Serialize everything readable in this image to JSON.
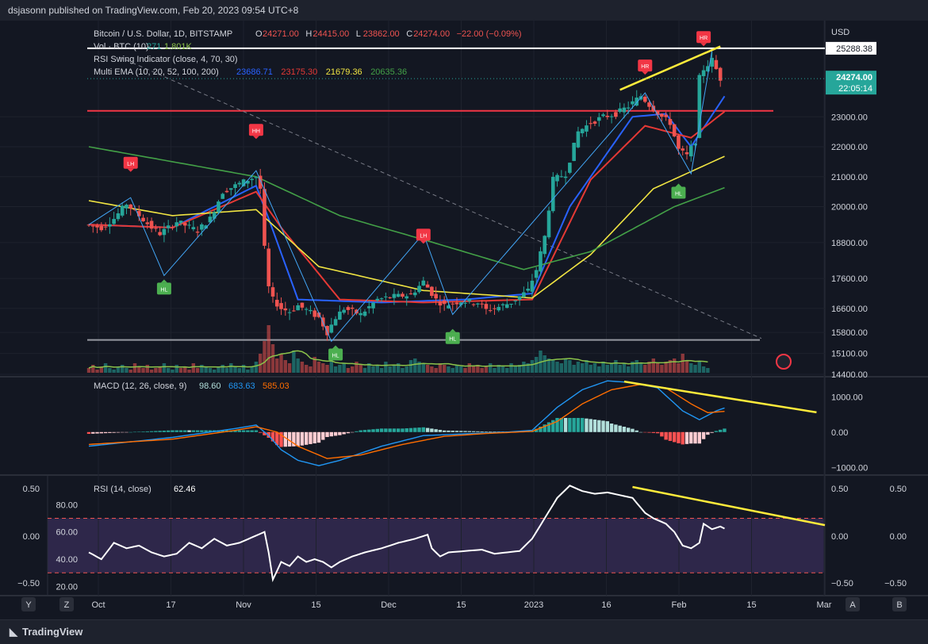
{
  "header": {
    "published": "dsjasonn published on TradingView.com, Feb 20, 2023 09:54 UTC+8"
  },
  "footer": {
    "brand": "TradingView"
  },
  "legend": {
    "symbol": "Bitcoin / U.S. Dollar, 1D, BITSTAMP",
    "ohlc": [
      {
        "k": "O",
        "v": "24271.00"
      },
      {
        "k": "H",
        "v": "24415.00"
      },
      {
        "k": "L",
        "v": "23862.00"
      },
      {
        "k": "C",
        "v": "24274.00"
      }
    ],
    "change": "−22.00 (−0.09%)",
    "vol_label": "Vol · BTC (10)",
    "vol_values": [
      "271",
      "1.801K"
    ],
    "rsi_swing": "RSI Swing Indicator (close, 4, 70, 30)",
    "ema_label": "Multi EMA (10, 20, 52, 100, 200)",
    "ema_values": [
      "23686.71",
      "23175.30",
      "21679.36",
      "20635.36"
    ],
    "macd_label": "MACD (12, 26, close, 9)",
    "macd_values": [
      "98.60",
      "683.63",
      "585.03"
    ],
    "rsi_label": "RSI (14, close)",
    "rsi_value": "62.46"
  },
  "colors": {
    "up": "#26a69a",
    "down": "#ef5350",
    "ema10": "#2962ff",
    "ema20": "#e53935",
    "ema52": "#f0e442",
    "ema100": "#43a047",
    "trend": "#ffeb3b",
    "rsi": "#ffffff",
    "macd": "#2196f3",
    "signal": "#ff6d00"
  },
  "chart_data": [
    {
      "type": "candlestick",
      "title": "Bitcoin / U.S. Dollar, 1D, BITSTAMP",
      "currency": "USD",
      "price_axis_ticks": [
        "23000.00",
        "22000.00",
        "21000.00",
        "20000.00",
        "18800.00",
        "17600.00",
        "16600.00",
        "15800.00",
        "15100.00",
        "14400.00"
      ],
      "ylim": [
        14400,
        26000
      ],
      "x_ticks": [
        "Oct",
        "17",
        "Nov",
        "15",
        "Dec",
        "15",
        "2023",
        "16",
        "Feb",
        "15",
        "Mar"
      ],
      "price_labels": [
        {
          "value": "25288.38",
          "price": 25288.38
        },
        {
          "value": "24274.00",
          "price": 24274
        },
        {
          "value": "22:05:14",
          "price": 24274
        }
      ],
      "levels": [
        25288.38,
        23200,
        15550
      ],
      "swing_labels": [
        {
          "text": "LH",
          "day": 10,
          "price": 21450,
          "kind": "high"
        },
        {
          "text": "HH",
          "day": 40,
          "price": 22550,
          "kind": "high"
        },
        {
          "text": "LH",
          "day": 80,
          "price": 19050,
          "kind": "high"
        },
        {
          "text": "HR",
          "day": 133,
          "price": 24700,
          "kind": "high"
        },
        {
          "text": "HR",
          "day": 147,
          "price": 25650,
          "kind": "high"
        },
        {
          "text": "HL",
          "day": 18,
          "price": 17250,
          "kind": "low"
        },
        {
          "text": "HL",
          "day": 59,
          "price": 15050,
          "kind": "low"
        },
        {
          "text": "HL",
          "day": 87,
          "price": 15600,
          "kind": "low"
        },
        {
          "text": "HL",
          "day": 141,
          "price": 20450,
          "kind": "low"
        }
      ],
      "anchors": [
        {
          "d": 0,
          "p": 19400
        },
        {
          "d": 4,
          "p": 19300
        },
        {
          "d": 7,
          "p": 19600
        },
        {
          "d": 10,
          "p": 20100
        },
        {
          "d": 13,
          "p": 19700
        },
        {
          "d": 16,
          "p": 19300
        },
        {
          "d": 18,
          "p": 19100
        },
        {
          "d": 22,
          "p": 19500
        },
        {
          "d": 27,
          "p": 19200
        },
        {
          "d": 30,
          "p": 19600
        },
        {
          "d": 33,
          "p": 20500
        },
        {
          "d": 36,
          "p": 20700
        },
        {
          "d": 39,
          "p": 20900
        },
        {
          "d": 41,
          "p": 21000
        },
        {
          "d": 42,
          "p": 20600
        },
        {
          "d": 43,
          "p": 18600
        },
        {
          "d": 44,
          "p": 17300
        },
        {
          "d": 45,
          "p": 16900
        },
        {
          "d": 47,
          "p": 16600
        },
        {
          "d": 49,
          "p": 16500
        },
        {
          "d": 51,
          "p": 16700
        },
        {
          "d": 53,
          "p": 16550
        },
        {
          "d": 56,
          "p": 16300
        },
        {
          "d": 58,
          "p": 15800
        },
        {
          "d": 60,
          "p": 16300
        },
        {
          "d": 62,
          "p": 16600
        },
        {
          "d": 64,
          "p": 16500
        },
        {
          "d": 66,
          "p": 16400
        },
        {
          "d": 70,
          "p": 16900
        },
        {
          "d": 74,
          "p": 17000
        },
        {
          "d": 78,
          "p": 17050
        },
        {
          "d": 81,
          "p": 17500
        },
        {
          "d": 82,
          "p": 17300
        },
        {
          "d": 84,
          "p": 16900
        },
        {
          "d": 86,
          "p": 16700
        },
        {
          "d": 90,
          "p": 16850
        },
        {
          "d": 94,
          "p": 16800
        },
        {
          "d": 96,
          "p": 16550
        },
        {
          "d": 99,
          "p": 16650
        },
        {
          "d": 102,
          "p": 16800
        },
        {
          "d": 106,
          "p": 17200
        },
        {
          "d": 108,
          "p": 17900
        },
        {
          "d": 110,
          "p": 19000
        },
        {
          "d": 112,
          "p": 20900
        },
        {
          "d": 115,
          "p": 21100
        },
        {
          "d": 118,
          "p": 22500
        },
        {
          "d": 121,
          "p": 22800
        },
        {
          "d": 124,
          "p": 23000
        },
        {
          "d": 127,
          "p": 23100
        },
        {
          "d": 130,
          "p": 23350
        },
        {
          "d": 133,
          "p": 23700
        },
        {
          "d": 135,
          "p": 23400
        },
        {
          "d": 138,
          "p": 23000
        },
        {
          "d": 140,
          "p": 22800
        },
        {
          "d": 142,
          "p": 21900
        },
        {
          "d": 144,
          "p": 21700
        },
        {
          "d": 146,
          "p": 22200
        },
        {
          "d": 147,
          "p": 24300
        },
        {
          "d": 148,
          "p": 24600
        },
        {
          "d": 150,
          "p": 24900
        },
        {
          "d": 152,
          "p": 24274
        }
      ],
      "ema_series": [
        {
          "name": "EMA 10",
          "points": [
            [
              0,
              19400
            ],
            [
              20,
              19300
            ],
            [
              40,
              20700
            ],
            [
              43,
              19600
            ],
            [
              50,
              16900
            ],
            [
              70,
              16800
            ],
            [
              90,
              16900
            ],
            [
              106,
              17100
            ],
            [
              115,
              20000
            ],
            [
              130,
              23000
            ],
            [
              138,
              23100
            ],
            [
              144,
              22000
            ],
            [
              152,
              23686.71
            ]
          ]
        },
        {
          "name": "EMA 20",
          "points": [
            [
              0,
              19400
            ],
            [
              20,
              19300
            ],
            [
              40,
              20500
            ],
            [
              46,
              19300
            ],
            [
              60,
              16900
            ],
            [
              80,
              16800
            ],
            [
              106,
              16900
            ],
            [
              120,
              20900
            ],
            [
              133,
              22700
            ],
            [
              144,
              22300
            ],
            [
              152,
              23175.3
            ]
          ]
        },
        {
          "name": "EMA 52",
          "points": [
            [
              0,
              20200
            ],
            [
              20,
              19700
            ],
            [
              40,
              19900
            ],
            [
              55,
              18000
            ],
            [
              80,
              17200
            ],
            [
              106,
              16950
            ],
            [
              120,
              18400
            ],
            [
              135,
              20600
            ],
            [
              152,
              21679.36
            ]
          ]
        },
        {
          "name": "EMA 100",
          "points": [
            [
              0,
              22000
            ],
            [
              20,
              21500
            ],
            [
              40,
              21000
            ],
            [
              60,
              19700
            ],
            [
              80,
              18900
            ],
            [
              104,
              17900
            ],
            [
              120,
              18500
            ],
            [
              140,
              20000
            ],
            [
              152,
              20635.36
            ]
          ]
        }
      ],
      "volume": [
        3,
        5,
        2,
        4,
        6,
        3,
        2,
        4,
        5,
        3,
        2,
        6,
        4,
        3,
        5,
        2,
        3,
        4,
        6,
        3,
        2,
        5,
        3,
        4,
        2,
        6,
        3,
        5,
        4,
        3,
        2,
        4,
        5,
        3,
        6,
        4,
        3,
        5,
        2,
        4,
        7,
        12,
        20,
        30,
        18,
        9,
        12,
        8,
        6,
        14,
        9,
        7,
        5,
        4,
        10,
        7,
        6,
        5,
        8,
        4,
        5,
        6,
        3,
        4,
        7,
        5,
        3,
        6,
        4,
        5,
        3,
        7,
        4,
        5,
        6,
        3,
        4,
        8,
        9,
        7,
        6,
        5,
        4,
        3,
        6,
        5,
        4,
        3,
        5,
        4,
        3,
        6,
        4,
        5,
        3,
        4,
        6,
        3,
        5,
        4,
        3,
        6,
        4,
        5,
        7,
        6,
        8,
        10,
        14,
        11,
        9,
        8,
        7,
        6,
        9,
        8,
        5,
        7,
        6,
        8,
        5,
        6,
        4,
        7,
        5,
        6,
        8,
        5,
        6,
        4,
        7,
        8,
        6,
        5,
        7,
        9,
        6,
        5,
        7,
        8,
        9,
        6,
        12,
        8,
        6,
        5,
        7,
        4,
        3
      ]
    },
    {
      "type": "line",
      "title": "MACD (12, 26, close, 9)",
      "y_ticks": [
        "1000.00",
        "0.00",
        "−1000.00"
      ],
      "ylim": [
        -1150,
        1500
      ],
      "macd": [
        [
          0,
          -400
        ],
        [
          20,
          -150
        ],
        [
          35,
          100
        ],
        [
          40,
          200
        ],
        [
          43,
          -100
        ],
        [
          46,
          -500
        ],
        [
          50,
          -800
        ],
        [
          55,
          -950
        ],
        [
          60,
          -800
        ],
        [
          70,
          -400
        ],
        [
          80,
          -100
        ],
        [
          90,
          -50
        ],
        [
          100,
          0
        ],
        [
          106,
          50
        ],
        [
          112,
          700
        ],
        [
          118,
          1200
        ],
        [
          124,
          1450
        ],
        [
          130,
          1400
        ],
        [
          136,
          1250
        ],
        [
          142,
          600
        ],
        [
          146,
          350
        ],
        [
          150,
          600
        ],
        [
          152,
          683.63
        ]
      ],
      "signal": [
        [
          0,
          -350
        ],
        [
          20,
          -200
        ],
        [
          35,
          50
        ],
        [
          40,
          150
        ],
        [
          45,
          0
        ],
        [
          50,
          -400
        ],
        [
          57,
          -750
        ],
        [
          65,
          -650
        ],
        [
          75,
          -350
        ],
        [
          85,
          -120
        ],
        [
          95,
          -40
        ],
        [
          106,
          20
        ],
        [
          112,
          300
        ],
        [
          118,
          800
        ],
        [
          125,
          1200
        ],
        [
          132,
          1350
        ],
        [
          138,
          1250
        ],
        [
          144,
          800
        ],
        [
          148,
          550
        ],
        [
          152,
          585.03
        ]
      ],
      "trend": [
        [
          128,
          1430
        ],
        [
          174,
          560
        ]
      ]
    },
    {
      "type": "line",
      "title": "RSI (14, close)",
      "left_ticks": [
        "80.00",
        "60.00",
        "40.00",
        "20.00"
      ],
      "outer_ticks": [
        "0.50",
        "0.00",
        "−0.50"
      ],
      "ylim": [
        15,
        100
      ],
      "bands": [
        70,
        30
      ],
      "values": [
        [
          0,
          45
        ],
        [
          3,
          40
        ],
        [
          6,
          52
        ],
        [
          9,
          48
        ],
        [
          12,
          50
        ],
        [
          15,
          45
        ],
        [
          18,
          42
        ],
        [
          21,
          44
        ],
        [
          24,
          52
        ],
        [
          27,
          48
        ],
        [
          30,
          55
        ],
        [
          33,
          50
        ],
        [
          36,
          52
        ],
        [
          39,
          56
        ],
        [
          42,
          60
        ],
        [
          43,
          45
        ],
        [
          44,
          25
        ],
        [
          46,
          38
        ],
        [
          48,
          35
        ],
        [
          50,
          42
        ],
        [
          52,
          38
        ],
        [
          54,
          40
        ],
        [
          56,
          38
        ],
        [
          58,
          34
        ],
        [
          60,
          38
        ],
        [
          63,
          42
        ],
        [
          66,
          45
        ],
        [
          70,
          48
        ],
        [
          74,
          52
        ],
        [
          78,
          55
        ],
        [
          81,
          58
        ],
        [
          82,
          48
        ],
        [
          84,
          42
        ],
        [
          86,
          45
        ],
        [
          90,
          46
        ],
        [
          94,
          47
        ],
        [
          97,
          44
        ],
        [
          100,
          45
        ],
        [
          103,
          46
        ],
        [
          106,
          55
        ],
        [
          109,
          70
        ],
        [
          112,
          85
        ],
        [
          115,
          94
        ],
        [
          118,
          90
        ],
        [
          121,
          88
        ],
        [
          124,
          89
        ],
        [
          127,
          87
        ],
        [
          130,
          85
        ],
        [
          133,
          74
        ],
        [
          135,
          70
        ],
        [
          138,
          66
        ],
        [
          140,
          60
        ],
        [
          142,
          50
        ],
        [
          144,
          48
        ],
        [
          146,
          52
        ],
        [
          147,
          66
        ],
        [
          149,
          62
        ],
        [
          151,
          64
        ],
        [
          152,
          62.46
        ]
      ],
      "trend": [
        [
          130,
          93
        ],
        [
          176,
          65
        ]
      ]
    }
  ]
}
